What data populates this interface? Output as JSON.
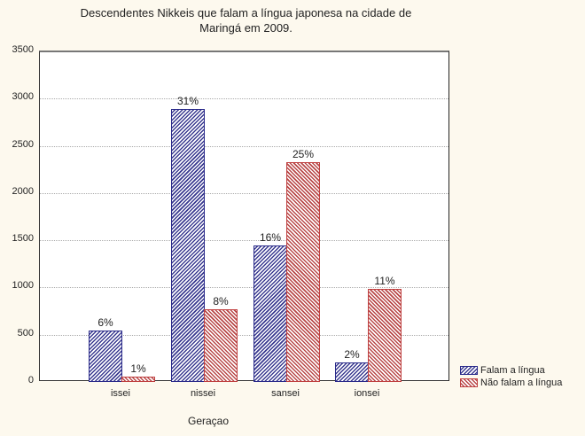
{
  "chart_data": {
    "type": "bar",
    "title": "Descendentes Nikkeis que falam a língua japonesa na cidade de Maringá em 2009.",
    "title_lines": [
      "Descendentes Nikkeis que falam a língua japonesa na cidade de",
      "Maringá em 2009."
    ],
    "xlabel": "Geraçao",
    "ylabel": "",
    "ylim": [
      0,
      3500
    ],
    "yticks": [
      "0",
      "500",
      "1000",
      "1500",
      "2000",
      "2500",
      "3000",
      "3500"
    ],
    "grid": true,
    "legend_position": "bottom-right",
    "categories": [
      "issei",
      "nissei",
      "sansei",
      "ionsei"
    ],
    "series": [
      {
        "name": "Falam a língua",
        "color": "#2a2a8a",
        "values": [
          540,
          2890,
          1445,
          205
        ],
        "labels": [
          "6%",
          "31%",
          "16%",
          "2%"
        ]
      },
      {
        "name": "Não falam a língua",
        "color": "#c04040",
        "values": [
          55,
          770,
          2330,
          985
        ],
        "labels": [
          "1%",
          "8%",
          "25%",
          "11%"
        ]
      }
    ]
  }
}
